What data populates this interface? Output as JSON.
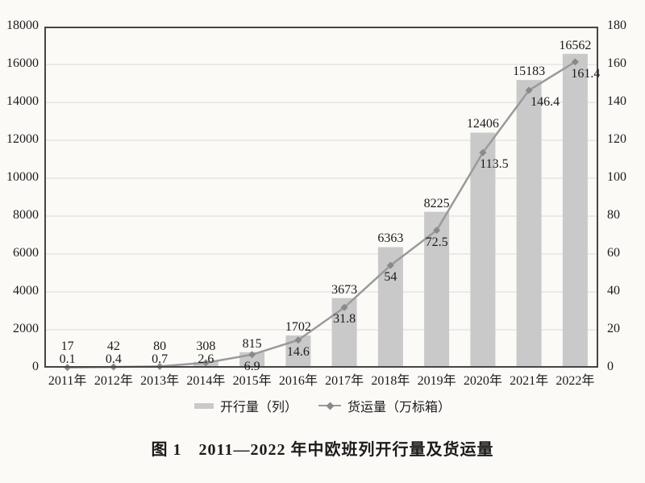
{
  "caption": {
    "text": "图 1　2011—2022 年中欧班列开行量及货运量"
  },
  "legend": {
    "items": [
      {
        "label": "开行量（列）",
        "marker": "bar-swatch"
      },
      {
        "label": "货运量（万标箱）",
        "marker": "line-diamond-swatch"
      }
    ]
  },
  "colors": {
    "bar": "#c9c9c9",
    "line": "#9a9a9a",
    "marker": "#898989",
    "grid": "#d9d9d9",
    "frame": "#454545",
    "text": "#1b1b1b",
    "background": "#fbfaf7"
  },
  "chart_data": {
    "type": "combo-bar-line",
    "title": "图 1　2011—2022 年中欧班列开行量及货运量",
    "categories": [
      "2011年",
      "2012年",
      "2013年",
      "2014年",
      "2015年",
      "2016年",
      "2017年",
      "2018年",
      "2019年",
      "2020年",
      "2021年",
      "2022年"
    ],
    "series": [
      {
        "name": "开行量（列）",
        "type": "bar",
        "axis": "left",
        "values": [
          17,
          42,
          80,
          308,
          815,
          1702,
          3673,
          6363,
          8225,
          12406,
          15183,
          16562
        ],
        "data_labels": [
          "17",
          "42",
          "80",
          "308",
          "815",
          "1702",
          "3673",
          "6363",
          "8225",
          "12406",
          "15183",
          "16562"
        ]
      },
      {
        "name": "货运量（万标箱）",
        "type": "line",
        "axis": "right",
        "marker": "diamond",
        "values": [
          0.1,
          0.4,
          0.7,
          2.6,
          6.9,
          14.6,
          31.8,
          54,
          72.5,
          113.5,
          146.4,
          161.4
        ],
        "data_labels": [
          "0.1",
          "0.4",
          "0.7",
          "2.6",
          "6.9",
          "14.6",
          "31.8",
          "54",
          "72.5",
          "113.5",
          "146.4",
          "161.4"
        ]
      }
    ],
    "left_axis": {
      "min": 0,
      "max": 18000,
      "step": 2000,
      "tick_labels": [
        "0",
        "2000",
        "4000",
        "6000",
        "8000",
        "10000",
        "12000",
        "14000",
        "16000",
        "18000"
      ]
    },
    "right_axis": {
      "min": 0,
      "max": 180,
      "step": 20,
      "tick_labels": [
        "0",
        "20",
        "40",
        "60",
        "80",
        "100",
        "120",
        "140",
        "160",
        "180"
      ]
    },
    "grid": true,
    "legend_position": "bottom"
  }
}
